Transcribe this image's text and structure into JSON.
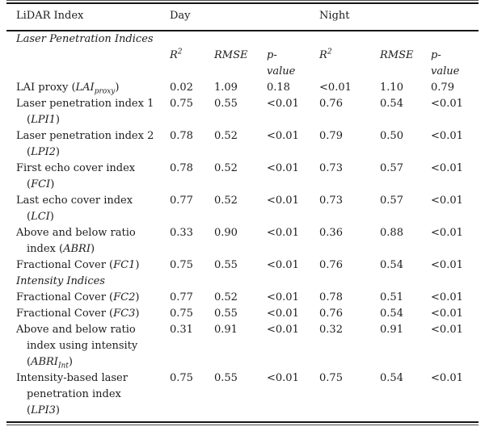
{
  "page": {
    "background": "#ffffff",
    "text_color": "#1c1c1c",
    "rule_color": "#161616"
  },
  "table": {
    "header": {
      "index_col": "LiDAR Index",
      "day": "Day",
      "night": "Night"
    },
    "subheader_cols": [
      {
        "base": "R",
        "sup": "2"
      },
      {
        "text": "RMSE"
      },
      {
        "text": "p-\nvalue"
      },
      {
        "base": "R",
        "sup": "2"
      },
      {
        "text": "RMSE"
      },
      {
        "text": "p-\nvalue"
      }
    ],
    "rows": [
      {
        "type": "section",
        "segments": [
          {
            "t": "Laser Penetration Indices",
            "i": true
          }
        ]
      },
      {
        "type": "subheader"
      },
      {
        "type": "data",
        "segments": [
          {
            "t": "LAI proxy ("
          },
          {
            "t": "LAI",
            "i": true
          },
          {
            "t": "proxy",
            "i": true,
            "sub": true
          },
          {
            "t": ")"
          }
        ],
        "values": [
          "0.02",
          "1.09",
          "0.18",
          "<0.01",
          "1.10",
          "0.79"
        ]
      },
      {
        "type": "data",
        "segments": [
          {
            "t": "Laser penetration index 1"
          },
          {
            "br": true
          },
          {
            "t": "("
          },
          {
            "t": "LPI1",
            "i": true
          },
          {
            "t": ")"
          }
        ],
        "values": [
          "0.75",
          "0.55",
          "<0.01",
          "0.76",
          "0.54",
          "<0.01"
        ]
      },
      {
        "type": "data",
        "segments": [
          {
            "t": "Laser penetration index 2"
          },
          {
            "br": true
          },
          {
            "t": "("
          },
          {
            "t": "LPI2",
            "i": true
          },
          {
            "t": ")"
          }
        ],
        "values": [
          "0.78",
          "0.52",
          "<0.01",
          "0.79",
          "0.50",
          "<0.01"
        ]
      },
      {
        "type": "data",
        "segments": [
          {
            "t": "First echo cover index"
          },
          {
            "br": true
          },
          {
            "t": "("
          },
          {
            "t": "FCI",
            "i": true
          },
          {
            "t": ")"
          }
        ],
        "values": [
          "0.78",
          "0.52",
          "<0.01",
          "0.73",
          "0.57",
          "<0.01"
        ]
      },
      {
        "type": "data",
        "segments": [
          {
            "t": "Last echo cover index"
          },
          {
            "br": true
          },
          {
            "t": "("
          },
          {
            "t": "LCI",
            "i": true
          },
          {
            "t": ")"
          }
        ],
        "values": [
          "0.77",
          "0.52",
          "<0.01",
          "0.73",
          "0.57",
          "<0.01"
        ]
      },
      {
        "type": "data",
        "segments": [
          {
            "t": "Above and below ratio"
          },
          {
            "br": true
          },
          {
            "t": "index ("
          },
          {
            "t": "ABRI",
            "i": true
          },
          {
            "t": ")"
          }
        ],
        "values": [
          "0.33",
          "0.90",
          "<0.01",
          "0.36",
          "0.88",
          "<0.01"
        ]
      },
      {
        "type": "data",
        "segments": [
          {
            "t": "Fractional Cover ("
          },
          {
            "t": "FC1",
            "i": true
          },
          {
            "t": ")"
          }
        ],
        "values": [
          "0.75",
          "0.55",
          "<0.01",
          "0.76",
          "0.54",
          "<0.01"
        ]
      },
      {
        "type": "section",
        "segments": [
          {
            "t": "Intensity Indices",
            "i": true
          }
        ]
      },
      {
        "type": "data",
        "segments": [
          {
            "t": "Fractional Cover ("
          },
          {
            "t": "FC2",
            "i": true
          },
          {
            "t": ")"
          }
        ],
        "values": [
          "0.77",
          "0.52",
          "<0.01",
          "0.78",
          "0.51",
          "<0.01"
        ]
      },
      {
        "type": "data",
        "segments": [
          {
            "t": "Fractional Cover ("
          },
          {
            "t": "FC3",
            "i": true
          },
          {
            "t": ")"
          }
        ],
        "values": [
          "0.75",
          "0.55",
          "<0.01",
          "0.76",
          "0.54",
          "<0.01"
        ]
      },
      {
        "type": "data",
        "segments": [
          {
            "t": "Above and below ratio"
          },
          {
            "br": true
          },
          {
            "t": "index using intensity"
          },
          {
            "br": true
          },
          {
            "t": "("
          },
          {
            "t": "ABRI",
            "i": true
          },
          {
            "t": "Int",
            "i": true,
            "sub": true
          },
          {
            "t": ")"
          }
        ],
        "values": [
          "0.31",
          "0.91",
          "<0.01",
          "0.32",
          "0.91",
          "<0.01"
        ]
      },
      {
        "type": "data",
        "segments": [
          {
            "t": "Intensity-based laser"
          },
          {
            "br": true
          },
          {
            "t": "penetration index"
          },
          {
            "br": true
          },
          {
            "t": "("
          },
          {
            "t": "LPI3",
            "i": true
          },
          {
            "t": ")"
          }
        ],
        "values": [
          "0.75",
          "0.55",
          "<0.01",
          "0.75",
          "0.54",
          "<0.01"
        ]
      }
    ]
  }
}
